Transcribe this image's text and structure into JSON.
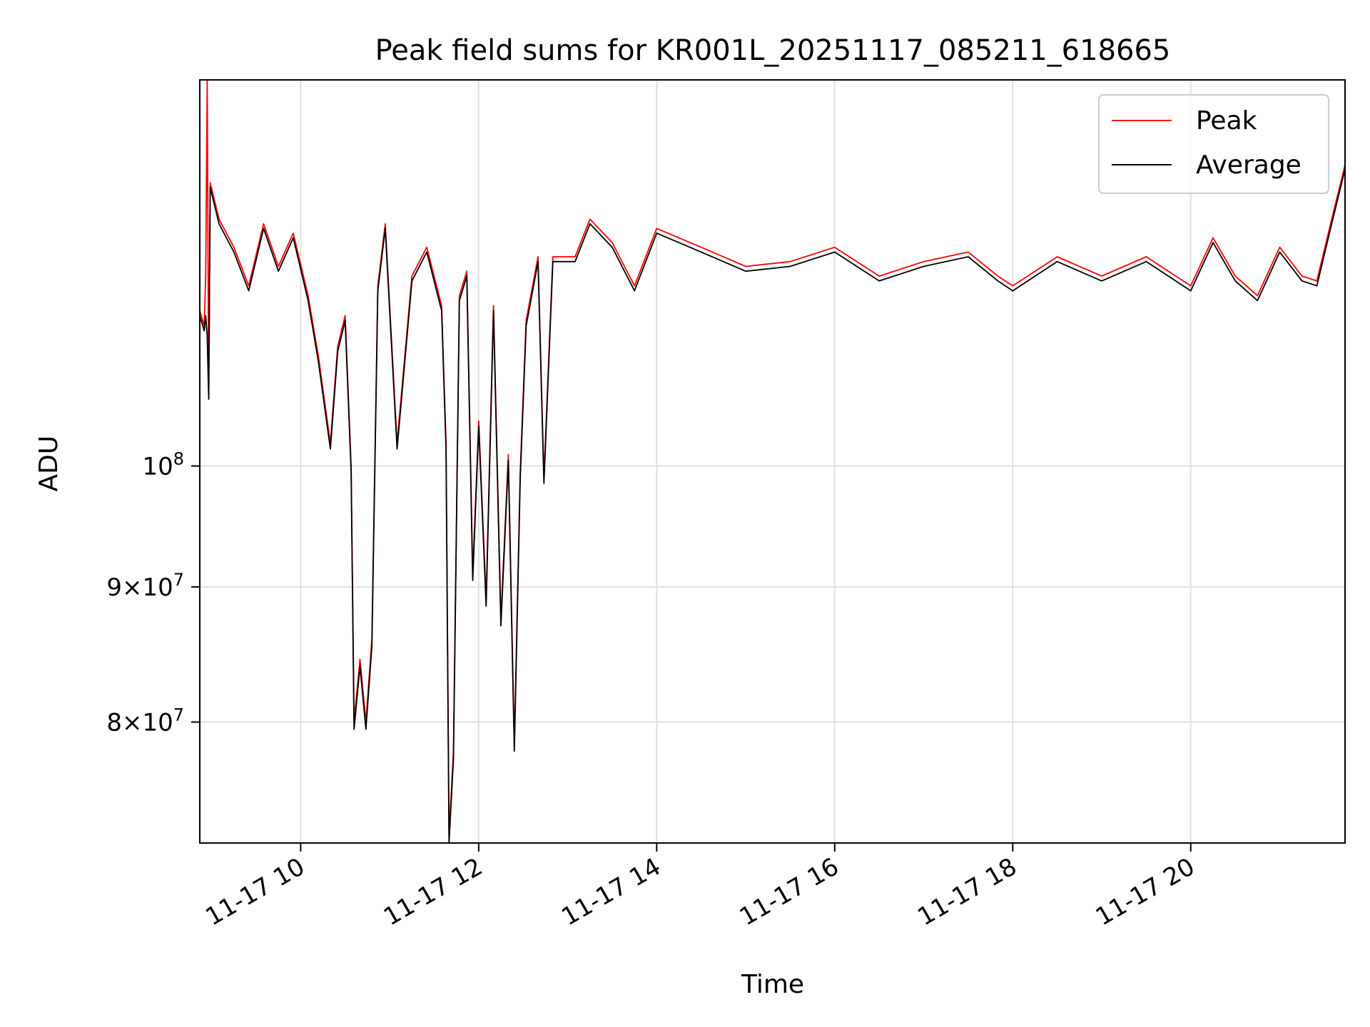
{
  "chart_data": {
    "type": "line",
    "title": "Peak field sums for KR001L_20251117_085211_618665",
    "xlabel": "Time",
    "ylabel": "ADU",
    "yscale": "log",
    "xlim": [
      "2025-11-17T08:52",
      "2025-11-17T21:44"
    ],
    "ylim": [
      72000000,
      140000000
    ],
    "grid": true,
    "legend": {
      "placement": "top-right"
    },
    "x_ticks": [
      {
        "t": "2025-11-17T10:00",
        "label": "11-17 10"
      },
      {
        "t": "2025-11-17T12:00",
        "label": "11-17 12"
      },
      {
        "t": "2025-11-17T14:00",
        "label": "11-17 14"
      },
      {
        "t": "2025-11-17T16:00",
        "label": "11-17 16"
      },
      {
        "t": "2025-11-17T18:00",
        "label": "11-17 18"
      },
      {
        "t": "2025-11-17T20:00",
        "label": "11-17 20"
      }
    ],
    "y_ticks": [
      {
        "value": 80000000,
        "mantissa": "8",
        "exponent": "7"
      },
      {
        "value": 90000000,
        "mantissa": "9",
        "exponent": "7"
      },
      {
        "value": 100000000,
        "mantissa": "",
        "exponent": "8"
      }
    ],
    "series": [
      {
        "name": "Peak",
        "color": "#ff0000",
        "points": [
          [
            "2025-11-17T08:52",
            114500000
          ],
          [
            "2025-11-17T08:55",
            113000000
          ],
          [
            "2025-11-17T08:56",
            118000000
          ],
          [
            "2025-11-17T08:57",
            140000000
          ],
          [
            "2025-11-17T08:58",
            106000000
          ],
          [
            "2025-11-17T08:59",
            128000000
          ],
          [
            "2025-11-17T09:05",
            124000000
          ],
          [
            "2025-11-17T09:15",
            121000000
          ],
          [
            "2025-11-17T09:25",
            117000000
          ],
          [
            "2025-11-17T09:35",
            123500000
          ],
          [
            "2025-11-17T09:45",
            119000000
          ],
          [
            "2025-11-17T09:55",
            122500000
          ],
          [
            "2025-11-17T10:05",
            116000000
          ],
          [
            "2025-11-17T10:12",
            110000000
          ],
          [
            "2025-11-17T10:20",
            102000000
          ],
          [
            "2025-11-17T10:25",
            111000000
          ],
          [
            "2025-11-17T10:30",
            114000000
          ],
          [
            "2025-11-17T10:34",
            100000000
          ],
          [
            "2025-11-17T10:36",
            80000000
          ],
          [
            "2025-11-17T10:40",
            84500000
          ],
          [
            "2025-11-17T10:44",
            80000000
          ],
          [
            "2025-11-17T10:48",
            86000000
          ],
          [
            "2025-11-17T10:52",
            117000000
          ],
          [
            "2025-11-17T10:57",
            123500000
          ],
          [
            "2025-11-17T11:05",
            102000000
          ],
          [
            "2025-11-17T11:15",
            118000000
          ],
          [
            "2025-11-17T11:25",
            121000000
          ],
          [
            "2025-11-17T11:35",
            115000000
          ],
          [
            "2025-11-17T11:38",
            102000000
          ],
          [
            "2025-11-17T11:40",
            72500000
          ],
          [
            "2025-11-17T11:43",
            78000000
          ],
          [
            "2025-11-17T11:47",
            116000000
          ],
          [
            "2025-11-17T11:52",
            118500000
          ],
          [
            "2025-11-17T11:56",
            91000000
          ],
          [
            "2025-11-17T12:00",
            104000000
          ],
          [
            "2025-11-17T12:05",
            89000000
          ],
          [
            "2025-11-17T12:10",
            115000000
          ],
          [
            "2025-11-17T12:15",
            87500000
          ],
          [
            "2025-11-17T12:20",
            101000000
          ],
          [
            "2025-11-17T12:24",
            78500000
          ],
          [
            "2025-11-17T12:28",
            99500000
          ],
          [
            "2025-11-17T12:32",
            113500000
          ],
          [
            "2025-11-17T12:40",
            120000000
          ],
          [
            "2025-11-17T12:44",
            99000000
          ],
          [
            "2025-11-17T12:50",
            120000000
          ],
          [
            "2025-11-17T13:05",
            120000000
          ],
          [
            "2025-11-17T13:15",
            124000000
          ],
          [
            "2025-11-17T13:30",
            121500000
          ],
          [
            "2025-11-17T13:45",
            117000000
          ],
          [
            "2025-11-17T14:00",
            123000000
          ],
          [
            "2025-11-17T14:30",
            121000000
          ],
          [
            "2025-11-17T15:00",
            119000000
          ],
          [
            "2025-11-17T15:30",
            119500000
          ],
          [
            "2025-11-17T16:00",
            121000000
          ],
          [
            "2025-11-17T16:30",
            118000000
          ],
          [
            "2025-11-17T17:00",
            119500000
          ],
          [
            "2025-11-17T17:30",
            120500000
          ],
          [
            "2025-11-17T17:50",
            118000000
          ],
          [
            "2025-11-17T18:00",
            117000000
          ],
          [
            "2025-11-17T18:30",
            120000000
          ],
          [
            "2025-11-17T19:00",
            118000000
          ],
          [
            "2025-11-17T19:30",
            120000000
          ],
          [
            "2025-11-17T20:00",
            117000000
          ],
          [
            "2025-11-17T20:15",
            122000000
          ],
          [
            "2025-11-17T20:30",
            118000000
          ],
          [
            "2025-11-17T20:45",
            116000000
          ],
          [
            "2025-11-17T21:00",
            121000000
          ],
          [
            "2025-11-17T21:15",
            118000000
          ],
          [
            "2025-11-17T21:25",
            117500000
          ],
          [
            "2025-11-17T21:35",
            124000000
          ],
          [
            "2025-11-17T21:44",
            130000000
          ]
        ]
      },
      {
        "name": "Average",
        "color": "#000000",
        "points": [
          [
            "2025-11-17T08:52",
            114000000
          ],
          [
            "2025-11-17T08:55",
            112500000
          ],
          [
            "2025-11-17T08:56",
            114000000
          ],
          [
            "2025-11-17T08:57",
            112000000
          ],
          [
            "2025-11-17T08:58",
            106000000
          ],
          [
            "2025-11-17T08:59",
            127500000
          ],
          [
            "2025-11-17T09:05",
            123500000
          ],
          [
            "2025-11-17T09:15",
            120500000
          ],
          [
            "2025-11-17T09:25",
            116500000
          ],
          [
            "2025-11-17T09:35",
            123000000
          ],
          [
            "2025-11-17T09:45",
            118500000
          ],
          [
            "2025-11-17T09:55",
            122000000
          ],
          [
            "2025-11-17T10:05",
            115500000
          ],
          [
            "2025-11-17T10:12",
            109500000
          ],
          [
            "2025-11-17T10:20",
            101500000
          ],
          [
            "2025-11-17T10:25",
            110500000
          ],
          [
            "2025-11-17T10:30",
            113500000
          ],
          [
            "2025-11-17T10:34",
            99500000
          ],
          [
            "2025-11-17T10:36",
            79500000
          ],
          [
            "2025-11-17T10:40",
            84000000
          ],
          [
            "2025-11-17T10:44",
            79500000
          ],
          [
            "2025-11-17T10:48",
            85500000
          ],
          [
            "2025-11-17T10:52",
            116500000
          ],
          [
            "2025-11-17T10:57",
            123000000
          ],
          [
            "2025-11-17T11:05",
            101500000
          ],
          [
            "2025-11-17T11:15",
            117500000
          ],
          [
            "2025-11-17T11:25",
            120500000
          ],
          [
            "2025-11-17T11:35",
            114500000
          ],
          [
            "2025-11-17T11:38",
            101500000
          ],
          [
            "2025-11-17T11:40",
            72000000
          ],
          [
            "2025-11-17T11:43",
            77500000
          ],
          [
            "2025-11-17T11:47",
            115500000
          ],
          [
            "2025-11-17T11:52",
            118000000
          ],
          [
            "2025-11-17T11:56",
            90500000
          ],
          [
            "2025-11-17T12:00",
            103500000
          ],
          [
            "2025-11-17T12:05",
            88500000
          ],
          [
            "2025-11-17T12:10",
            114500000
          ],
          [
            "2025-11-17T12:15",
            87000000
          ],
          [
            "2025-11-17T12:20",
            100500000
          ],
          [
            "2025-11-17T12:24",
            78000000
          ],
          [
            "2025-11-17T12:28",
            99000000
          ],
          [
            "2025-11-17T12:32",
            113000000
          ],
          [
            "2025-11-17T12:40",
            119500000
          ],
          [
            "2025-11-17T12:44",
            98500000
          ],
          [
            "2025-11-17T12:50",
            119500000
          ],
          [
            "2025-11-17T13:05",
            119500000
          ],
          [
            "2025-11-17T13:15",
            123500000
          ],
          [
            "2025-11-17T13:30",
            121000000
          ],
          [
            "2025-11-17T13:45",
            116500000
          ],
          [
            "2025-11-17T14:00",
            122500000
          ],
          [
            "2025-11-17T14:30",
            120500000
          ],
          [
            "2025-11-17T15:00",
            118500000
          ],
          [
            "2025-11-17T15:30",
            119000000
          ],
          [
            "2025-11-17T16:00",
            120500000
          ],
          [
            "2025-11-17T16:30",
            117500000
          ],
          [
            "2025-11-17T17:00",
            119000000
          ],
          [
            "2025-11-17T17:30",
            120000000
          ],
          [
            "2025-11-17T17:50",
            117500000
          ],
          [
            "2025-11-17T18:00",
            116500000
          ],
          [
            "2025-11-17T18:30",
            119500000
          ],
          [
            "2025-11-17T19:00",
            117500000
          ],
          [
            "2025-11-17T19:30",
            119500000
          ],
          [
            "2025-11-17T20:00",
            116500000
          ],
          [
            "2025-11-17T20:15",
            121500000
          ],
          [
            "2025-11-17T20:30",
            117500000
          ],
          [
            "2025-11-17T20:45",
            115500000
          ],
          [
            "2025-11-17T21:00",
            120500000
          ],
          [
            "2025-11-17T21:15",
            117500000
          ],
          [
            "2025-11-17T21:25",
            117000000
          ],
          [
            "2025-11-17T21:35",
            123500000
          ],
          [
            "2025-11-17T21:44",
            129500000
          ]
        ]
      }
    ]
  }
}
